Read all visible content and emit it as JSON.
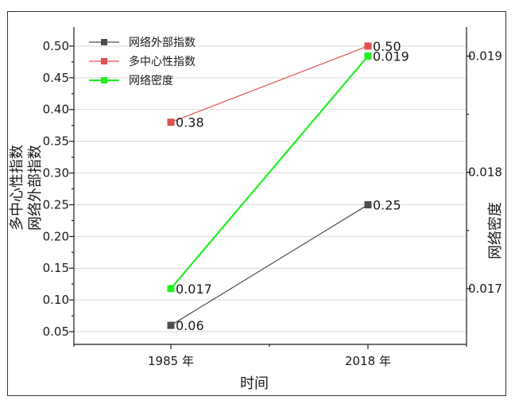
{
  "chart_data": {
    "type": "line",
    "categories": [
      "1985 年",
      "2018 年"
    ],
    "xlabel": "时间",
    "ylabel_left": [
      "多中心性指数",
      "网络外部指数"
    ],
    "ylabel_right": "网络密度",
    "ylim_left": [
      0.03,
      0.53
    ],
    "yticks_left": [
      0.05,
      0.1,
      0.15,
      0.2,
      0.25,
      0.3,
      0.35,
      0.4,
      0.45,
      0.5
    ],
    "ytick_labels_left": [
      "0.05",
      "0.10",
      "0.15",
      "0.20",
      "0.25",
      "0.30",
      "0.35",
      "0.40",
      "0.45",
      "0.50"
    ],
    "ylim_right": [
      0.01652,
      0.01925
    ],
    "yticks_right": [
      0.017,
      0.018,
      0.019
    ],
    "ytick_labels_right": [
      "0.017",
      "0.018",
      "0.019"
    ],
    "grid": true,
    "legend_position": "top-left",
    "series": [
      {
        "name": "网络外部指数",
        "color": "#4d4d4d",
        "axis": "left",
        "values": [
          0.06,
          0.25
        ],
        "labels": [
          "0.06",
          "0.25"
        ]
      },
      {
        "name": "多中心性指数",
        "color": "#e05050",
        "axis": "left",
        "values": [
          0.38,
          0.5
        ],
        "labels": [
          "0.38",
          "0.50"
        ]
      },
      {
        "name": "网络密度",
        "color": "#22ee22",
        "axis": "right",
        "values": [
          0.017,
          0.019
        ],
        "labels": [
          "0.017",
          "0.019"
        ]
      }
    ]
  }
}
